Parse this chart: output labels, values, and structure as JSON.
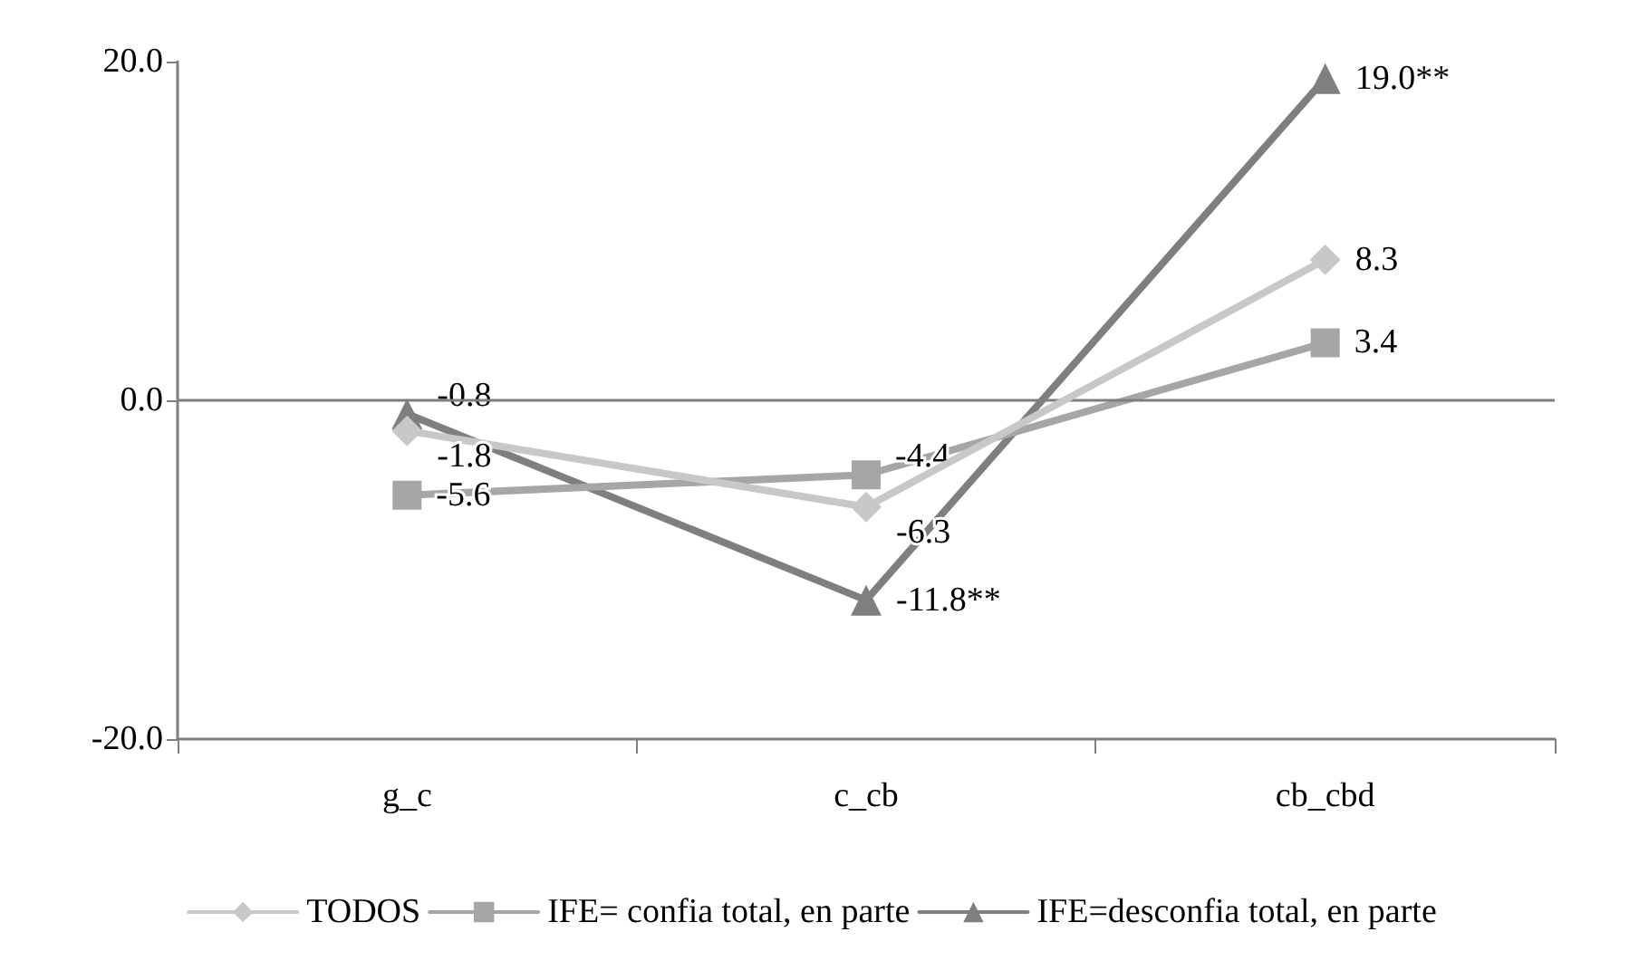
{
  "chart_data": {
    "type": "line",
    "categories": [
      "g_c",
      "c_cb",
      "cb_cbd"
    ],
    "series": [
      {
        "name": "TODOS",
        "color": "#c8c8c8",
        "marker": "diamond",
        "values": [
          -1.8,
          -6.3,
          8.3
        ],
        "value_labels": [
          "-1.8",
          "-6.3",
          "8.3"
        ]
      },
      {
        "name": "IFE= confia total, en parte",
        "color": "#a6a6a6",
        "marker": "square",
        "values": [
          -5.6,
          -4.4,
          3.4
        ],
        "value_labels": [
          "-5.6",
          "-4.4",
          "3.4"
        ]
      },
      {
        "name": "IFE=desconfia total, en parte",
        "color": "#7f7f7f",
        "marker": "triangle",
        "values": [
          -0.8,
          -11.8,
          19.0
        ],
        "value_labels": [
          "-0.8",
          "-11.8**",
          "19.0**"
        ]
      }
    ],
    "ylim": [
      -20,
      20
    ],
    "yticks": [
      {
        "value": -20,
        "label": "-20.0"
      },
      {
        "value": 0,
        "label": "0.0"
      },
      {
        "value": 20,
        "label": "20.0"
      }
    ],
    "ref_lines": [
      {
        "axis": "y",
        "value": 0,
        "color": "#7f7f7f"
      }
    ],
    "grid": false,
    "legend": "bottom",
    "line_style": "solid"
  }
}
